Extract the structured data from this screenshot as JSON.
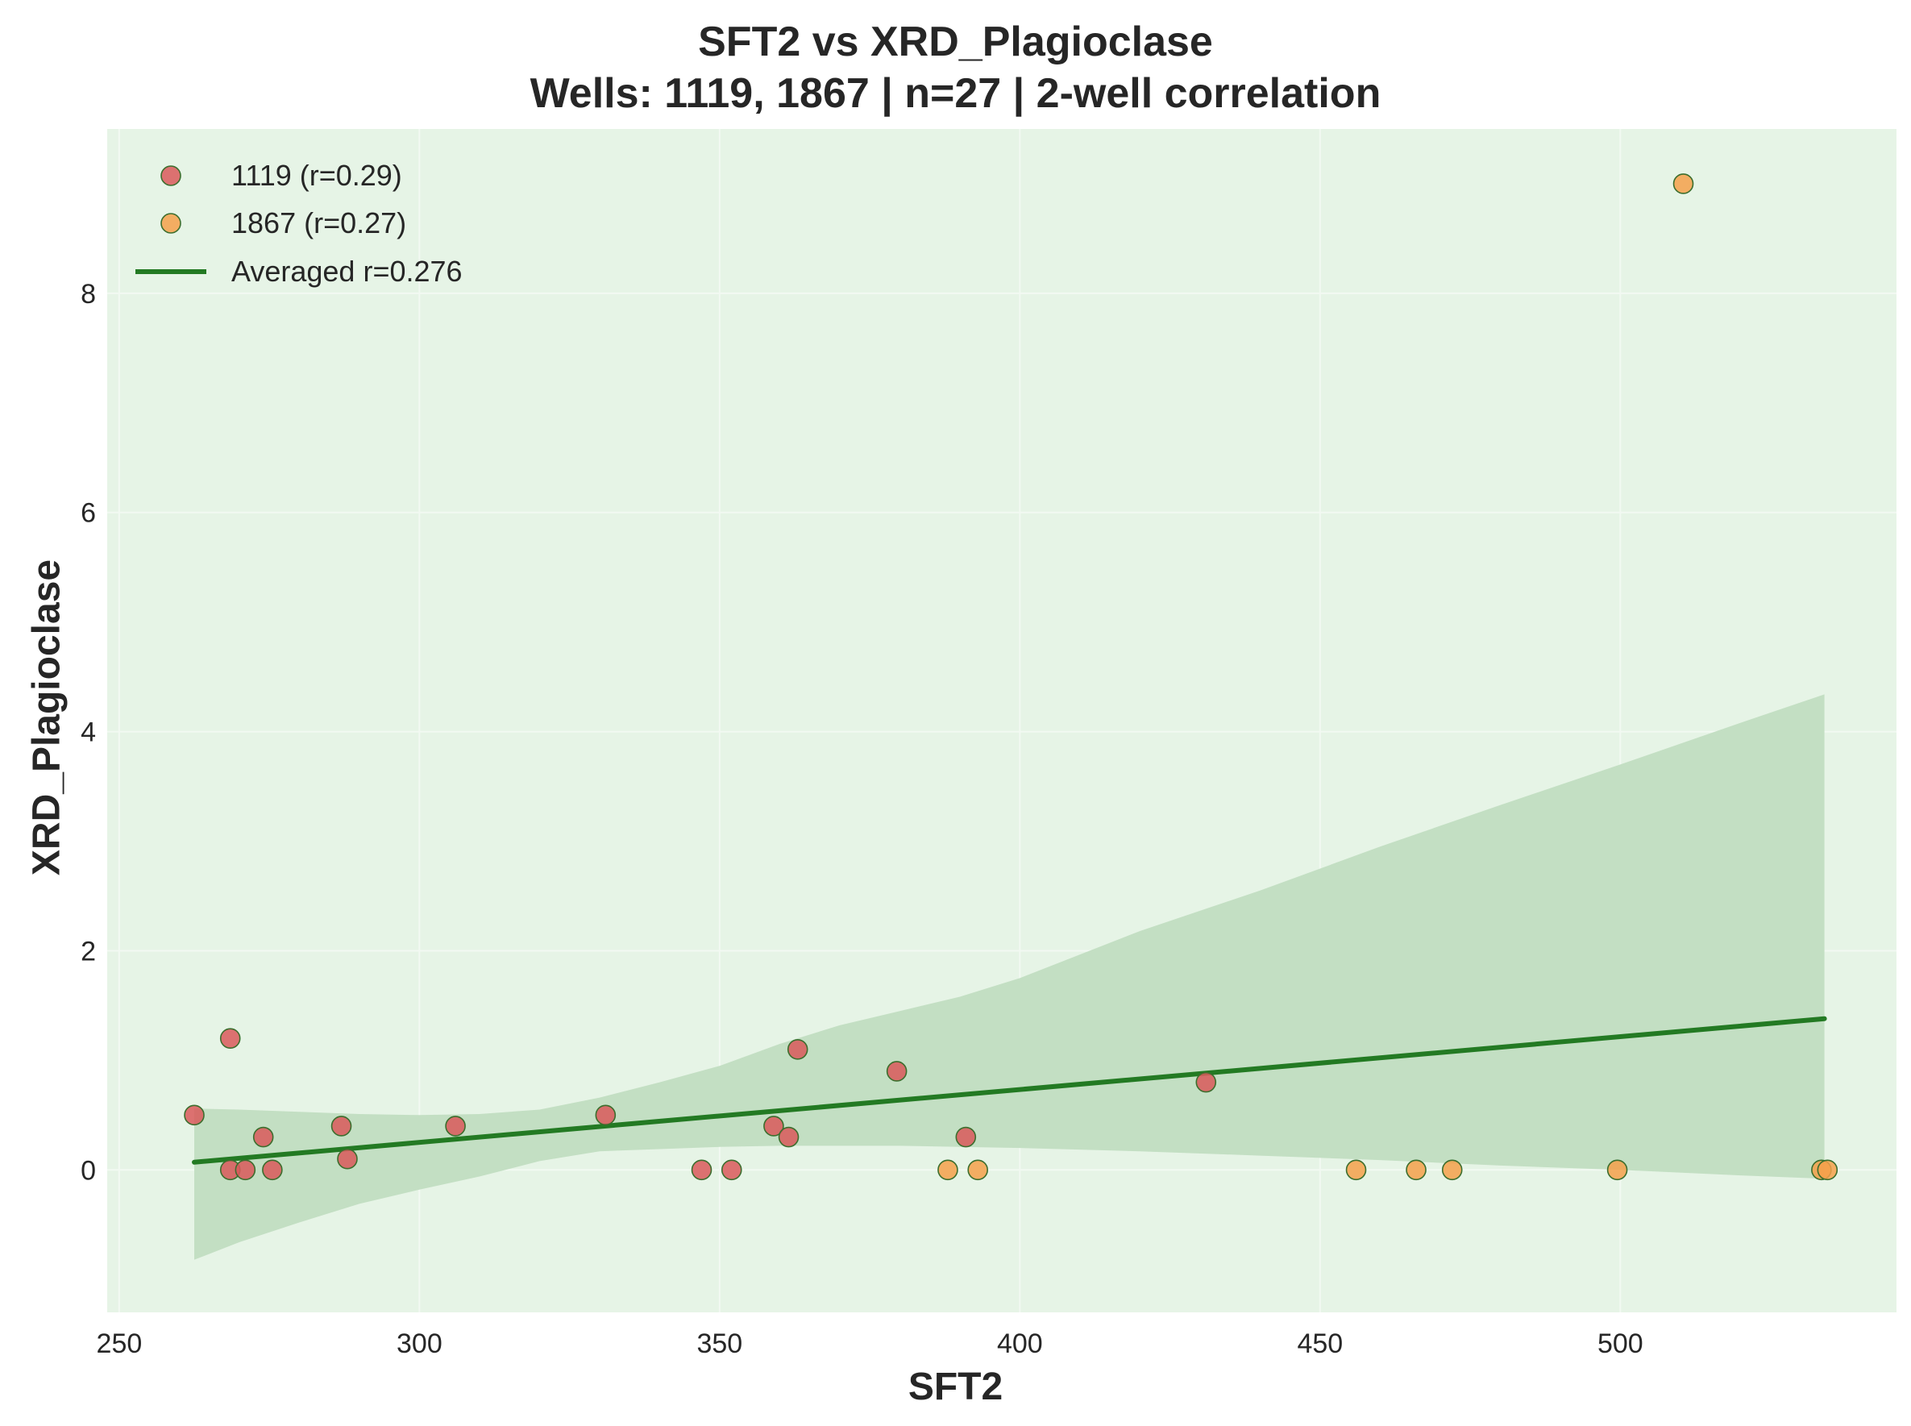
{
  "chart_data": {
    "type": "scatter",
    "title": "SFT2 vs XRD_Plagioclase",
    "subtitle": "Wells: 1119, 1867 | n=27 | 2-well correlation",
    "xlabel": "SFT2",
    "ylabel": "XRD_Plagioclase",
    "xlim": [
      248,
      546
    ],
    "ylim": [
      -1.3,
      9.5
    ],
    "xticks": [
      250,
      300,
      350,
      400,
      450,
      500
    ],
    "yticks": [
      0,
      2,
      4,
      6,
      8
    ],
    "grid": true,
    "legend_position": "top-left",
    "colors": {
      "background": "#e6f4e6",
      "grid": "#f2f9f2",
      "well_1119": "#d9595a",
      "well_1867": "#f5a04a",
      "marker_edge": "#3c6e2e",
      "fit_line": "#237a23",
      "band": "#c3dfc3"
    },
    "series": [
      {
        "name": "1119 (r=0.29)",
        "points": [
          [
            262.5,
            0.5
          ],
          [
            268.5,
            1.2
          ],
          [
            268.5,
            0.0
          ],
          [
            271,
            0.0
          ],
          [
            274,
            0.3
          ],
          [
            275.5,
            0.0
          ],
          [
            287,
            0.4
          ],
          [
            288,
            0.1
          ],
          [
            306,
            0.4
          ],
          [
            331,
            0.5
          ],
          [
            347,
            0.0
          ],
          [
            352,
            0.0
          ],
          [
            359,
            0.4
          ],
          [
            361.5,
            0.3
          ],
          [
            363,
            1.1
          ],
          [
            379.5,
            0.9
          ],
          [
            391,
            0.3
          ],
          [
            431,
            0.8
          ]
        ]
      },
      {
        "name": "1867 (r=0.27)",
        "points": [
          [
            388,
            0.0
          ],
          [
            393,
            0.0
          ],
          [
            456,
            0.0
          ],
          [
            466,
            0.0
          ],
          [
            472,
            0.0
          ],
          [
            499.5,
            0.0
          ],
          [
            510.5,
            9.0
          ],
          [
            533.5,
            0.0
          ],
          [
            534.5,
            0.0
          ]
        ]
      }
    ],
    "fit_line": {
      "name": "Averaged r=0.276",
      "x": [
        262.5,
        534
      ],
      "y": [
        0.07,
        1.38
      ]
    },
    "confidence_band": {
      "x": [
        262.5,
        270,
        280,
        290,
        300,
        310,
        320,
        330,
        340,
        350,
        360,
        370,
        380,
        390,
        400,
        420,
        440,
        460,
        480,
        500,
        520,
        534
      ],
      "upper": [
        0.56,
        0.55,
        0.53,
        0.51,
        0.5,
        0.51,
        0.55,
        0.66,
        0.8,
        0.95,
        1.15,
        1.32,
        1.45,
        1.58,
        1.75,
        2.18,
        2.55,
        2.95,
        3.33,
        3.7,
        4.08,
        4.34
      ],
      "lower": [
        -0.82,
        -0.66,
        -0.48,
        -0.31,
        -0.18,
        -0.06,
        0.08,
        0.17,
        0.19,
        0.21,
        0.22,
        0.22,
        0.22,
        0.21,
        0.2,
        0.17,
        0.13,
        0.09,
        0.04,
        0.0,
        -0.05,
        -0.08
      ]
    }
  }
}
